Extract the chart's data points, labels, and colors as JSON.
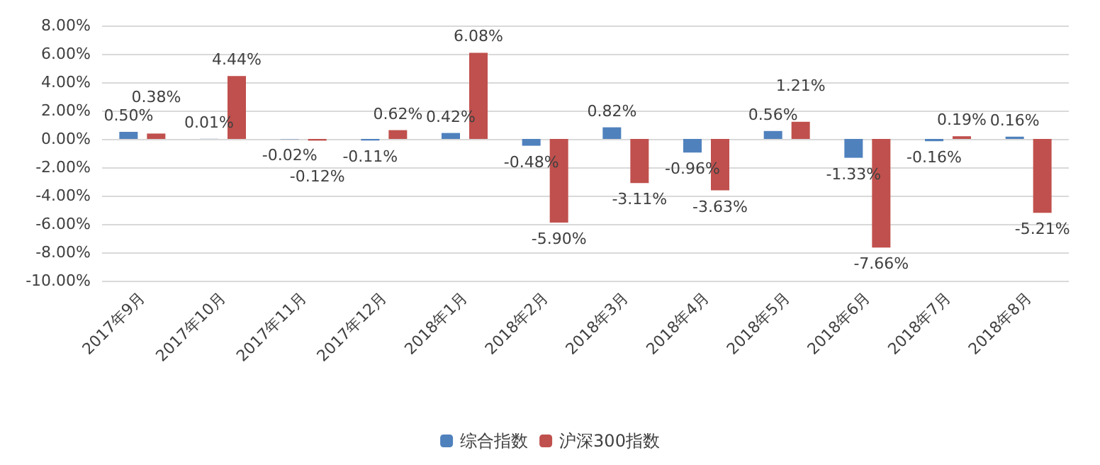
{
  "chart_data": {
    "type": "bar",
    "categories": [
      "2017年9月",
      "2017年10月",
      "2017年11月",
      "2017年12月",
      "2018年1月",
      "2018年2月",
      "2018年3月",
      "2018年4月",
      "2018年5月",
      "2018年6月",
      "2018年7月",
      "2018年8月"
    ],
    "series": [
      {
        "name": "综合指数",
        "color": "#4f81bd",
        "values": [
          0.5,
          0.01,
          -0.02,
          -0.11,
          0.42,
          -0.48,
          0.82,
          -0.96,
          0.56,
          -1.33,
          -0.16,
          0.16
        ],
        "value_labels": [
          "0.50%",
          "0.01%",
          "-0.02%",
          "-0.11%",
          "0.42%",
          "-0.48%",
          "0.82%",
          "-0.96%",
          "0.56%",
          "-1.33%",
          "-0.16%",
          "0.16%"
        ]
      },
      {
        "name": "沪深300指数",
        "color": "#c0504d",
        "values": [
          0.38,
          4.44,
          -0.12,
          0.62,
          6.08,
          -5.9,
          -3.11,
          -3.63,
          1.21,
          -7.66,
          0.19,
          -5.21
        ],
        "value_labels": [
          "0.38%",
          "4.44%",
          "-0.12%",
          "0.62%",
          "6.08%",
          "-5.90%",
          "-3.11%",
          "-3.63%",
          "1.21%",
          "-7.66%",
          "0.19%",
          "-5.21%"
        ]
      }
    ],
    "ylim": [
      -10,
      8
    ],
    "yticks": [
      {
        "value": -10,
        "label": "-10.00%"
      },
      {
        "value": -8,
        "label": "-8.00%"
      },
      {
        "value": -6,
        "label": "-6.00%"
      },
      {
        "value": -4,
        "label": "-4.00%"
      },
      {
        "value": -2,
        "label": "-2.00%"
      },
      {
        "value": 0,
        "label": "0.00%"
      },
      {
        "value": 2,
        "label": "2.00%"
      },
      {
        "value": 4,
        "label": "4.00%"
      },
      {
        "value": 6,
        "label": "6.00%"
      },
      {
        "value": 8,
        "label": "8.00%"
      }
    ],
    "grid": "y",
    "legend": "bottom"
  }
}
